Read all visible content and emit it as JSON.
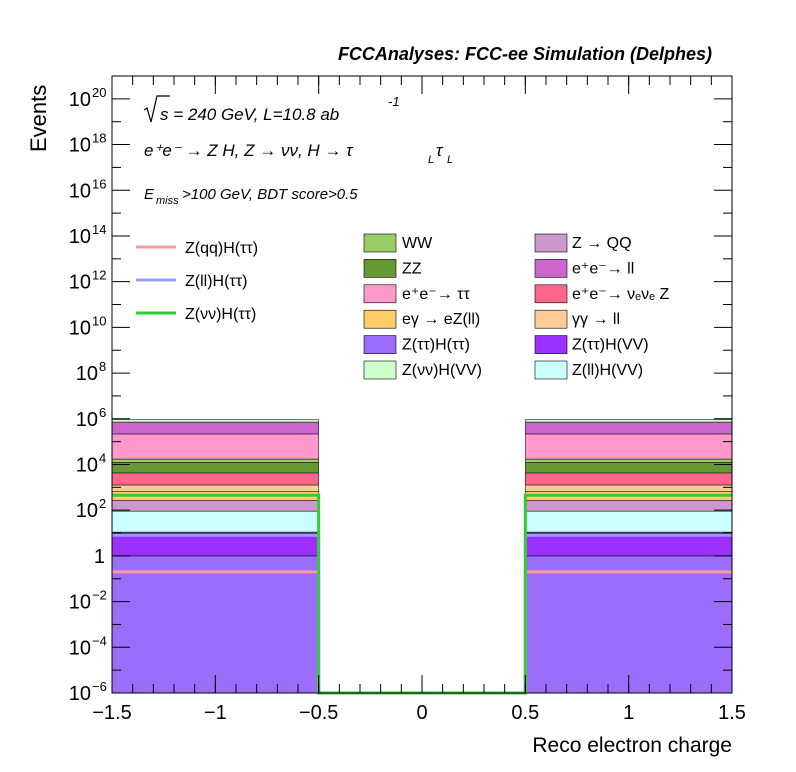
{
  "chart_data": {
    "type": "bar",
    "stacked": true,
    "title": "FCCAnalyses: FCC-ee Simulation (Delphes)",
    "xlabel": "Reco electron charge",
    "ylabel": "Events",
    "yscale": "log",
    "xlim": [
      -1.5,
      1.5
    ],
    "ylim": [
      1e-06,
      1e+21
    ],
    "x_ticks": [
      "−1.5",
      "−1",
      "−0.5",
      "0",
      "0.5",
      "1",
      "1.5"
    ],
    "y_ticks": [
      {
        "base": "10",
        "exp": "−6"
      },
      {
        "base": "10",
        "exp": "−4"
      },
      {
        "base": "10",
        "exp": "−2"
      },
      {
        "base": "1",
        "exp": ""
      },
      {
        "base": "10",
        "exp": "2"
      },
      {
        "base": "10",
        "exp": "4"
      },
      {
        "base": "10",
        "exp": "6"
      },
      {
        "base": "10",
        "exp": "8"
      },
      {
        "base": "10",
        "exp": "10"
      },
      {
        "base": "10",
        "exp": "12"
      },
      {
        "base": "10",
        "exp": "14"
      },
      {
        "base": "10",
        "exp": "16"
      },
      {
        "base": "10",
        "exp": "18"
      },
      {
        "base": "10",
        "exp": "20"
      }
    ],
    "annotations": {
      "sqrt_s": "s = 240 GeV, L=10.8 ab",
      "sqrt_s_exp": "-1",
      "process_main": "e⁺e⁻ → Z H, Z  → νν, H → τ",
      "process_sub1": "L",
      "process_tau2": "τ",
      "process_sub2": "L",
      "cut_E": "E",
      "cut_sub": "miss",
      "cut_rest": ">100 GeV, BDT score>0.5"
    },
    "bins": [
      {
        "low": -1.5,
        "high": -0.5
      },
      {
        "low": -0.5,
        "high": 0.5
      },
      {
        "low": 0.5,
        "high": 1.5
      }
    ],
    "stack": [
      {
        "name": "Z(ττ)H(ττ)",
        "color": "#9a6dfb",
        "values": [
          1.0,
          0,
          1.0
        ]
      },
      {
        "name": "Z(ττ)H(VV)",
        "color": "#9b30ff",
        "values": [
          9.0,
          0,
          9.0
        ]
      },
      {
        "name": "Z(ll)H(ττ)",
        "color": "#9999ff",
        "values": [
          1.0,
          0,
          1.0
        ]
      },
      {
        "name": "Z(ll)H(VV)",
        "color": "#ccffff",
        "values": [
          80,
          0,
          80
        ]
      },
      {
        "name": "Z → QQ",
        "color": "#cc99cc",
        "values": [
          180,
          0,
          180
        ]
      },
      {
        "name": "eγ → eZ(ll)",
        "color": "#ffcc66",
        "values": [
          400,
          0,
          400
        ]
      },
      {
        "name": "γγ → ll",
        "color": "#ffcc99",
        "values": [
          600,
          0,
          600
        ]
      },
      {
        "name": "e⁺e⁻→ νₑνₑ Z",
        "color": "#ff6688",
        "values": [
          3000,
          0,
          3000
        ]
      },
      {
        "name": "ZZ",
        "color": "#669933",
        "values": [
          8000,
          0,
          8000
        ]
      },
      {
        "name": "WW",
        "color": "#99cc66",
        "values": [
          5000,
          0,
          5000
        ]
      },
      {
        "name": "e⁺e⁻→ ττ",
        "color": "#ff99cc",
        "values": [
          200000,
          0,
          200000
        ]
      },
      {
        "name": "e⁺e⁻→ ll",
        "color": "#cc66cc",
        "values": [
          500000,
          0,
          500000
        ]
      },
      {
        "name": "Z(νν)H(VV)",
        "color": "#ccffcc",
        "values": [
          200000,
          0,
          200000
        ]
      }
    ],
    "signal_lines": [
      {
        "name": "Z(qq)H(ττ)",
        "color": "#ff9999",
        "values": [
          0.2,
          1e-06,
          0.2
        ]
      },
      {
        "name": "Z(ll)H(ττ)",
        "color": "#9999ff",
        "values": [
          8.0,
          1e-06,
          8.0
        ]
      },
      {
        "name": "Z(νν)H(ττ)",
        "color": "#33cc33",
        "values": [
          450,
          1e-06,
          450
        ]
      }
    ],
    "legend_signals": [
      {
        "label": "Z(qq)H(ττ)",
        "color": "#ff9999"
      },
      {
        "label": "Z(ll)H(ττ)",
        "color": "#9999ff"
      },
      {
        "label": "Z(νν)H(ττ)",
        "color": "#33cc33"
      }
    ],
    "legend_bkg_col1": [
      {
        "label": "WW",
        "color": "#99cc66"
      },
      {
        "label": "ZZ",
        "color": "#669933"
      },
      {
        "label": "e⁺e⁻→  ττ",
        "color": "#ff99cc"
      },
      {
        "label": "eγ → eZ(ll)",
        "color": "#ffcc66"
      },
      {
        "label": "Z(ττ)H(ττ)",
        "color": "#9a6dfb"
      },
      {
        "label": "Z(νν)H(VV)",
        "color": "#ccffcc"
      }
    ],
    "legend_bkg_col2": [
      {
        "label": "Z → QQ",
        "color": "#cc99cc"
      },
      {
        "label": "e⁺e⁻→  ll",
        "color": "#cc66cc"
      },
      {
        "label": "e⁺e⁻→  νₑνₑ Z",
        "color": "#ff6688"
      },
      {
        "label": "γγ → ll",
        "color": "#ffcc99"
      },
      {
        "label": "Z(ττ)H(VV)",
        "color": "#9b30ff"
      },
      {
        "label": "Z(ll)H(VV)",
        "color": "#ccffff"
      }
    ]
  }
}
